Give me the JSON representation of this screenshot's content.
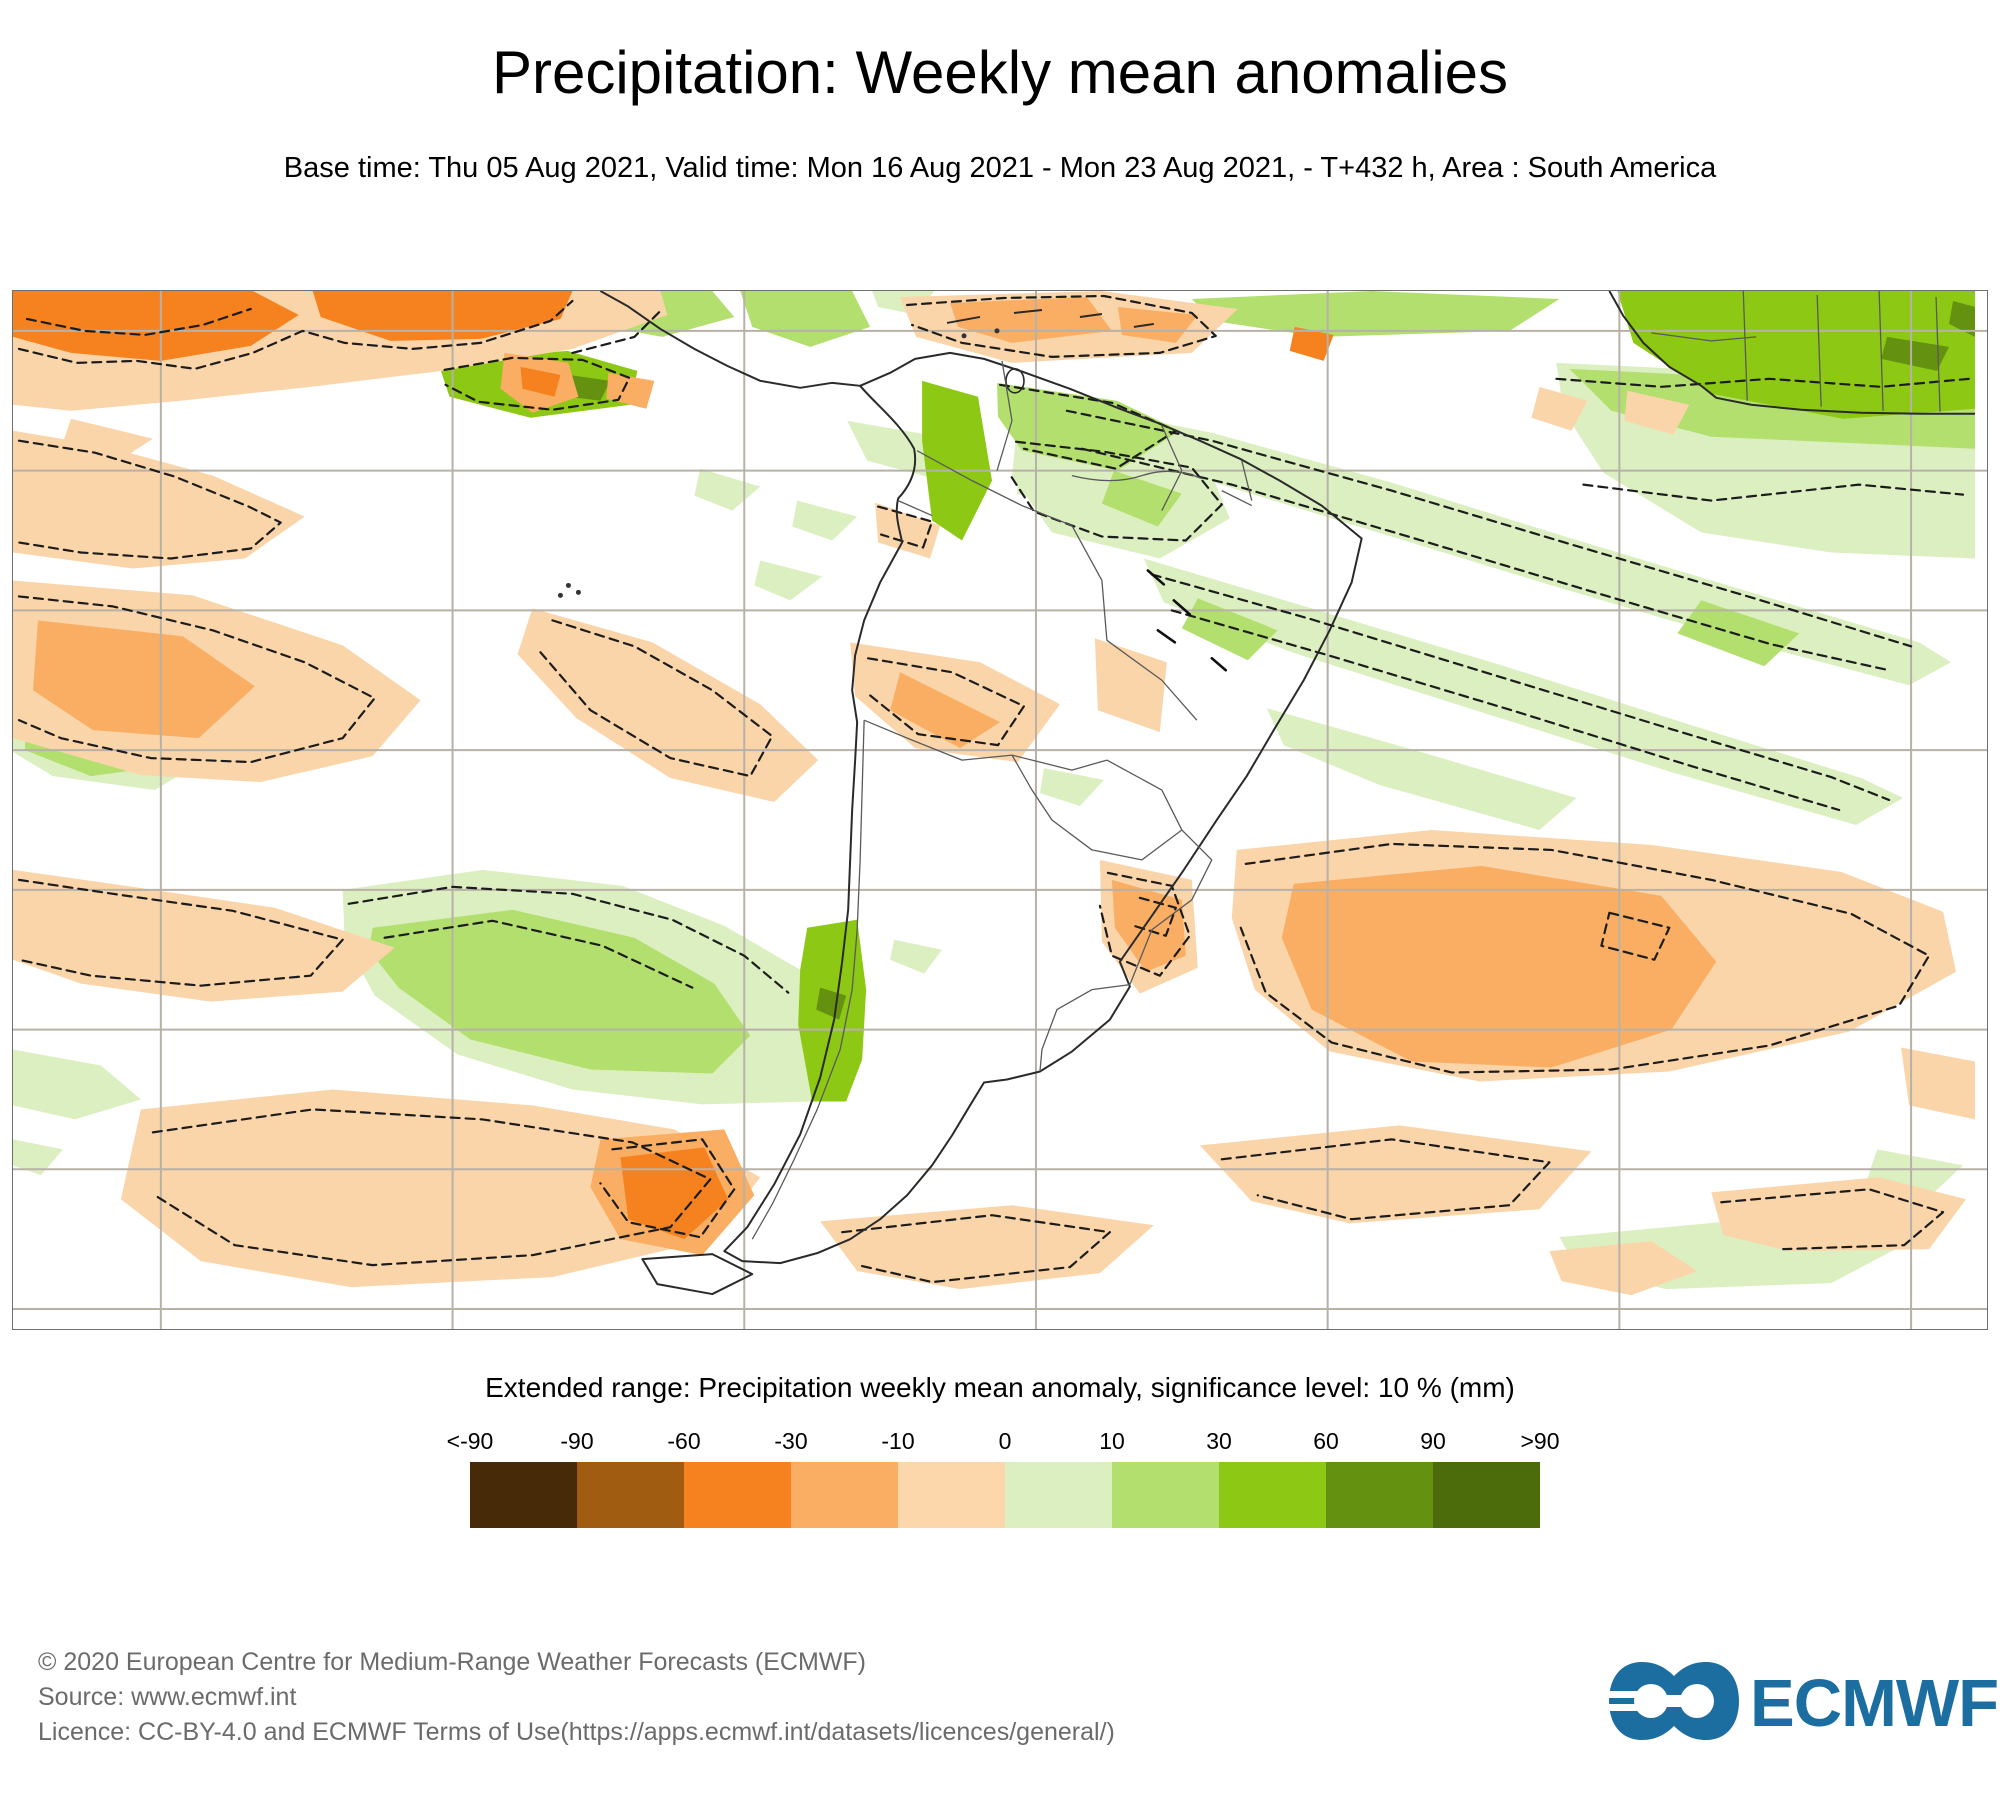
{
  "header": {
    "title": "Precipitation: Weekly mean anomalies",
    "subtitle": "Base time: Thu 05 Aug 2021, Valid time: Mon 16 Aug 2021 - Mon 23 Aug 2021, - T+432 h, Area : South America"
  },
  "map": {
    "area": "South America",
    "shading": {
      "negative_anomaly_colors": [
        "#fbd5aa",
        "#f9ae63",
        "#f5821e"
      ],
      "positive_anomaly_colors": [
        "#dcefc1",
        "#b2df6e",
        "#8cc814",
        "#64910f"
      ],
      "contour_style": "black dashed significance contours"
    }
  },
  "legend": {
    "title": "Extended range: Precipitation weekly mean anomaly, significance level: 10 % (mm)",
    "tick_labels": [
      "<-90",
      "-90",
      "-60",
      "-30",
      "-10",
      "0",
      "10",
      "30",
      "60",
      "90",
      ">90"
    ],
    "colors": [
      "#472a08",
      "#a05c10",
      "#f5821e",
      "#f9ae63",
      "#fcd7ac",
      "#dcefc0",
      "#b2df6e",
      "#8cc814",
      "#64910f",
      "#4c6c0b"
    ]
  },
  "footer": {
    "copyright": "© 2020 European Centre for Medium-Range Weather Forecasts (ECMWF)",
    "source": "Source: www.ecmwf.int",
    "licence": "Licence: CC-BY-4.0 and ECMWF Terms of Use(https://apps.ecmwf.int/datasets/licences/general/)"
  },
  "logo": {
    "text": "ECMWF",
    "color": "#1c6da0"
  }
}
